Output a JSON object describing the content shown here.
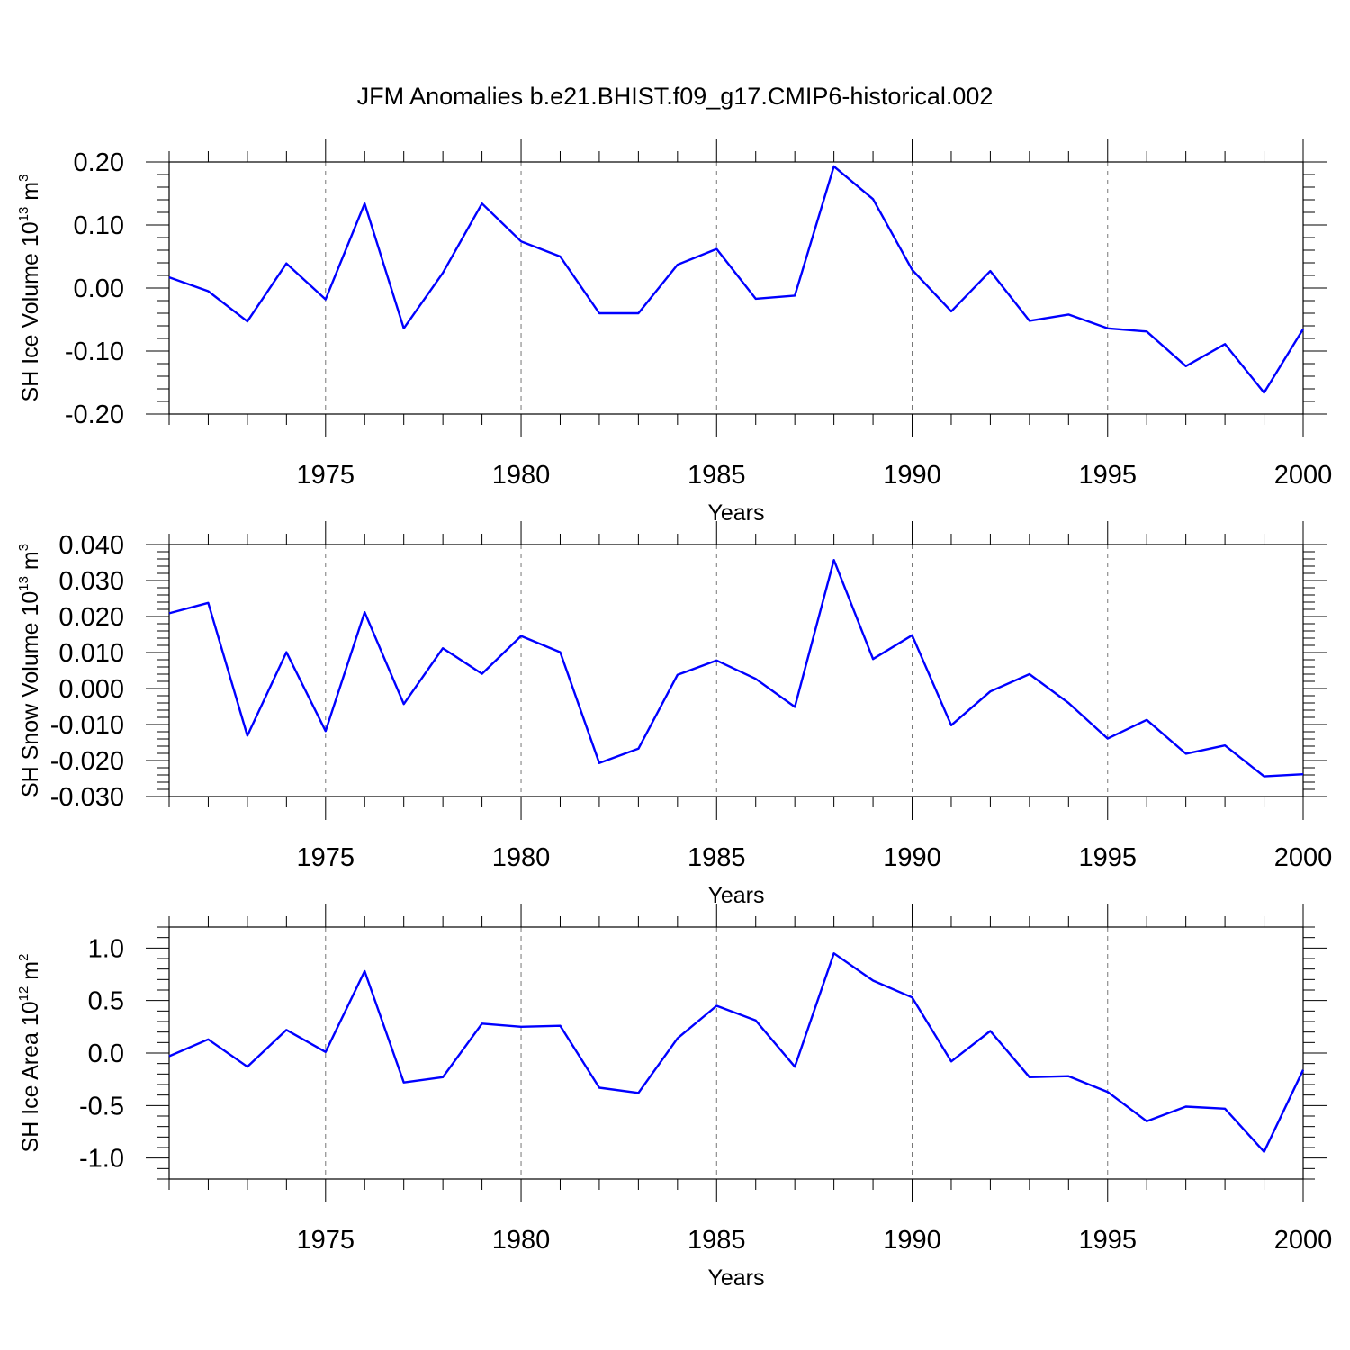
{
  "title": "JFM Anomalies b.e21.BHIST.f09_g17.CMIP6-historical.002",
  "line_color": "#0000ff",
  "chart_data": [
    {
      "type": "line",
      "ylabel": "SH Ice Volume 10",
      "ylabel_exp": "13",
      "ylabel_unit": " m",
      "ylabel_unit_exp": "3",
      "xlabel": "Years",
      "xlim": [
        1971,
        2000
      ],
      "ylim": [
        -0.2,
        0.2
      ],
      "yticks": [
        -0.2,
        -0.1,
        0.0,
        0.1,
        0.2
      ],
      "ytick_labels": [
        "-0.20",
        "-0.10",
        "0.00",
        "0.10",
        "0.20"
      ],
      "xticks": [
        1975,
        1980,
        1985,
        1990,
        1995,
        2000
      ],
      "xtick_labels": [
        "1975",
        "1980",
        "1985",
        "1990",
        "1995",
        "2000"
      ],
      "x": [
        1971,
        1972,
        1973,
        1974,
        1975,
        1976,
        1977,
        1978,
        1979,
        1980,
        1981,
        1982,
        1983,
        1984,
        1985,
        1986,
        1987,
        1988,
        1989,
        1990,
        1991,
        1992,
        1993,
        1994,
        1995,
        1996,
        1997,
        1998,
        1999,
        2000
      ],
      "y": [
        0.017,
        -0.005,
        -0.053,
        0.039,
        -0.018,
        0.134,
        -0.064,
        0.024,
        0.134,
        0.074,
        0.05,
        -0.04,
        -0.04,
        0.037,
        0.062,
        -0.017,
        -0.012,
        0.193,
        0.141,
        0.029,
        -0.037,
        0.027,
        -0.052,
        -0.042,
        -0.064,
        -0.069,
        -0.124,
        -0.089,
        -0.166,
        -0.065
      ]
    },
    {
      "type": "line",
      "ylabel": "SH Snow Volume 10",
      "ylabel_exp": "13",
      "ylabel_unit": " m",
      "ylabel_unit_exp": "3",
      "xlabel": "Years",
      "xlim": [
        1971,
        2000
      ],
      "ylim": [
        -0.03,
        0.04
      ],
      "yticks": [
        -0.03,
        -0.02,
        -0.01,
        0.0,
        0.01,
        0.02,
        0.03,
        0.04
      ],
      "ytick_labels": [
        "-0.030",
        "-0.020",
        "-0.010",
        "0.000",
        "0.010",
        "0.020",
        "0.030",
        "0.040"
      ],
      "xticks": [
        1975,
        1980,
        1985,
        1990,
        1995,
        2000
      ],
      "xtick_labels": [
        "1975",
        "1980",
        "1985",
        "1990",
        "1995",
        "2000"
      ],
      "x": [
        1971,
        1972,
        1973,
        1974,
        1975,
        1976,
        1977,
        1978,
        1979,
        1980,
        1981,
        1982,
        1983,
        1984,
        1985,
        1986,
        1987,
        1988,
        1989,
        1990,
        1991,
        1992,
        1993,
        1994,
        1995,
        1996,
        1997,
        1998,
        1999,
        2000
      ],
      "y": [
        0.0209,
        0.0238,
        -0.0131,
        0.0101,
        -0.0118,
        0.0212,
        -0.0043,
        0.0112,
        0.0041,
        0.0146,
        0.0101,
        -0.0207,
        -0.0167,
        0.0038,
        0.0078,
        0.0027,
        -0.0051,
        0.0357,
        0.0082,
        0.0148,
        -0.0102,
        -0.0008,
        0.004,
        -0.004,
        -0.0139,
        -0.0087,
        -0.0181,
        -0.0158,
        -0.0244,
        -0.0238
      ]
    },
    {
      "type": "line",
      "ylabel": "SH Ice Area 10",
      "ylabel_exp": "12",
      "ylabel_unit": " m",
      "ylabel_unit_exp": "2",
      "xlabel": "Years",
      "xlim": [
        1971,
        2000
      ],
      "ylim": [
        -1.2,
        1.2
      ],
      "yticks": [
        -1.0,
        -0.5,
        0.0,
        0.5,
        1.0
      ],
      "ytick_labels": [
        "-1.0",
        "-0.5",
        "0.0",
        "0.5",
        "1.0"
      ],
      "xticks": [
        1975,
        1980,
        1985,
        1990,
        1995,
        2000
      ],
      "xtick_labels": [
        "1975",
        "1980",
        "1985",
        "1990",
        "1995",
        "2000"
      ],
      "x": [
        1971,
        1972,
        1973,
        1974,
        1975,
        1976,
        1977,
        1978,
        1979,
        1980,
        1981,
        1982,
        1983,
        1984,
        1985,
        1986,
        1987,
        1988,
        1989,
        1990,
        1991,
        1992,
        1993,
        1994,
        1995,
        1996,
        1997,
        1998,
        1999,
        2000
      ],
      "y": [
        -0.03,
        0.13,
        -0.13,
        0.22,
        0.01,
        0.78,
        -0.28,
        -0.23,
        0.28,
        0.25,
        0.26,
        -0.33,
        -0.38,
        0.14,
        0.45,
        0.31,
        -0.13,
        0.95,
        0.69,
        0.53,
        -0.08,
        0.21,
        -0.23,
        -0.22,
        -0.37,
        -0.65,
        -0.51,
        -0.53,
        -0.94,
        -0.16
      ]
    }
  ]
}
